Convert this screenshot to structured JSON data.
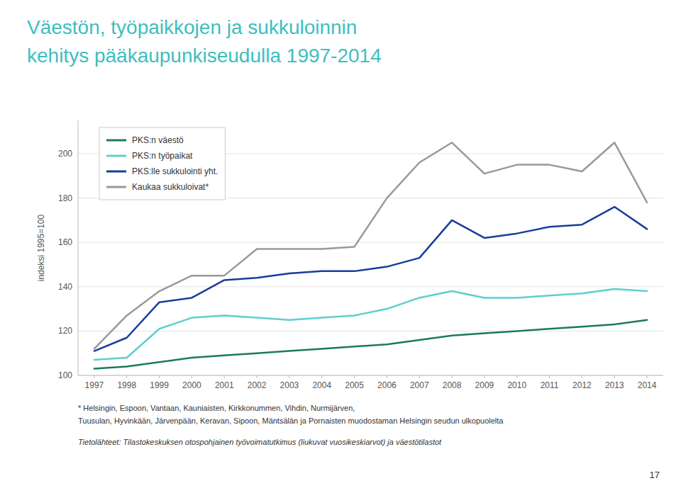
{
  "chart_data": {
    "type": "line",
    "title": "Väestön, työpaikkojen ja sukkuloinnin",
    "subtitle": "kehitys pääkaupunkiseudulla 1997-2014",
    "y_label": "indeksi 1995=100",
    "x": [
      1997,
      1998,
      1999,
      2000,
      2001,
      2002,
      2003,
      2004,
      2005,
      2006,
      2007,
      2008,
      2009,
      2010,
      2011,
      2012,
      2013,
      2014
    ],
    "series": [
      {
        "name": "PKS:n väestö",
        "color": "#1a7a5e",
        "values": [
          103,
          104,
          106,
          108,
          109,
          110,
          111,
          112,
          113,
          114,
          116,
          118,
          119,
          120,
          121,
          122,
          123,
          125
        ]
      },
      {
        "name": "PKS:n työpaikat",
        "color": "#5ecece",
        "values": [
          107,
          108,
          121,
          126,
          127,
          126,
          125,
          126,
          127,
          130,
          135,
          138,
          135,
          135,
          136,
          137,
          139,
          138
        ]
      },
      {
        "name": "PKS:lle sukkulointi yht.",
        "color": "#1a3c9c",
        "values": [
          111,
          117,
          133,
          135,
          143,
          144,
          146,
          147,
          147,
          149,
          153,
          170,
          162,
          164,
          167,
          168,
          176,
          166
        ]
      },
      {
        "name": "Kaukaa sukkuloivat*",
        "color": "#999999",
        "values": [
          112,
          127,
          138,
          145,
          145,
          157,
          157,
          157,
          158,
          180,
          196,
          205,
          191,
          195,
          195,
          192,
          205,
          178
        ]
      }
    ],
    "xlim": [
      1996.5,
      2014.5
    ],
    "xticks": [
      1997,
      1998,
      1999,
      2000,
      2001,
      2002,
      2003,
      2004,
      2005,
      2006,
      2007,
      2008,
      2009,
      2010,
      2011,
      2012,
      2013,
      2014
    ],
    "ylim": [
      100,
      215
    ],
    "yticks": [
      100,
      120,
      140,
      160,
      180,
      200
    ],
    "grid": true,
    "legend": "upper left",
    "color": "#3dbfbf",
    "annotations": [
      "* Helsingin, Espoon, Vantaan, Kauniaisten, Kirkkonummen, Vihdin, Nurmijärven,",
      "Tuusulan, Hyvinkään, Järvenpään, Keravan, Sipoon, Mäntsälän ja Pornaisten muodostaman Helsingin seudun ulkopuolelta",
      "Tietolähteet: Tilastokeskuksen otospohjainen työvoimatutkimus (liukuvat vuosikeskiarvot) ja väestötilastot",
      "17"
    ]
  }
}
